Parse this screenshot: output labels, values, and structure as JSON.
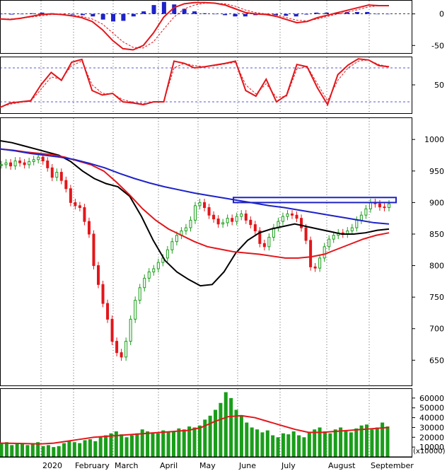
{
  "chart_data": [
    {
      "panel": "macd",
      "type": "line",
      "y_ticks": [
        "0",
        "-50"
      ],
      "ylim": [
        -62,
        22
      ],
      "series": [
        {
          "role": "macd-line",
          "color": "#e3161b",
          "values": [
            -8,
            -9,
            -7,
            -4,
            -1,
            0,
            -1,
            -3,
            -6,
            -12,
            -25,
            -42,
            -55,
            -57,
            -50,
            -30,
            -5,
            10,
            16,
            18,
            18,
            17,
            14,
            8,
            2,
            0,
            -1,
            -4,
            -9,
            -14,
            -12,
            -6,
            -2,
            2,
            6,
            10,
            14,
            13,
            13
          ]
        },
        {
          "role": "signal-line",
          "color": "#e3161b",
          "values": [
            -8,
            -8,
            -7,
            -5,
            -3,
            -1,
            -1,
            -2,
            -4,
            -8,
            -16,
            -30,
            -44,
            -53,
            -54,
            -44,
            -24,
            -5,
            8,
            14,
            17,
            17,
            16,
            12,
            6,
            2,
            0,
            -2,
            -6,
            -10,
            -11,
            -8,
            -4,
            0,
            3,
            7,
            11,
            13,
            13
          ]
        },
        {
          "role": "histogram",
          "color": "#1e22c8",
          "values": [
            0,
            -1,
            0,
            1,
            2,
            1,
            0,
            -1,
            -2,
            -4,
            -9,
            -12,
            -11,
            -4,
            4,
            14,
            19,
            15,
            8,
            4,
            1,
            0,
            -2,
            -4,
            -4,
            -2,
            -1,
            -2,
            -3,
            -4,
            -1,
            2,
            2,
            2,
            3,
            3,
            3,
            0,
            0
          ]
        }
      ]
    },
    {
      "panel": "stochastic",
      "type": "line",
      "y_ticks": [
        "50"
      ],
      "ylim": [
        0,
        100
      ],
      "reference_lines": [
        80,
        20
      ],
      "series": [
        {
          "role": "%K",
          "color": "#e3161b",
          "values": [
            10,
            18,
            20,
            22,
            50,
            72,
            58,
            90,
            95,
            40,
            32,
            35,
            20,
            18,
            15,
            20,
            20,
            92,
            88,
            80,
            82,
            85,
            88,
            92,
            40,
            30,
            60,
            20,
            32,
            86,
            82,
            45,
            15,
            68,
            85,
            96,
            94,
            84,
            82
          ]
        },
        {
          "role": "%D",
          "color": "#e3161b",
          "values": [
            11,
            16,
            19,
            21,
            42,
            64,
            60,
            84,
            92,
            50,
            35,
            34,
            24,
            19,
            17,
            19,
            21,
            80,
            88,
            84,
            82,
            84,
            87,
            90,
            50,
            34,
            52,
            28,
            30,
            78,
            83,
            52,
            22,
            58,
            80,
            92,
            94,
            86,
            82
          ]
        }
      ]
    },
    {
      "panel": "price",
      "type": "candlestick",
      "y_ticks": [
        "1000",
        "950",
        "900",
        "850",
        "800",
        "750",
        "700",
        "650"
      ],
      "ylim": [
        610,
        1035
      ],
      "series": [
        {
          "role": "close",
          "color": "#1a9e1a",
          "values": [
            960,
            963,
            958,
            966,
            963,
            960,
            965,
            968,
            972,
            966,
            955,
            940,
            948,
            935,
            922,
            900,
            895,
            892,
            870,
            850,
            800,
            770,
            740,
            715,
            680,
            662,
            655,
            680,
            715,
            745,
            765,
            780,
            790,
            795,
            805,
            812,
            825,
            838,
            848,
            855,
            860,
            872,
            895,
            900,
            892,
            880,
            874,
            866,
            868,
            875,
            870,
            878,
            882,
            872,
            865,
            855,
            835,
            830,
            845,
            860,
            870,
            878,
            882,
            880,
            875,
            860,
            840,
            798,
            796,
            812,
            830,
            842,
            848,
            852,
            850,
            855,
            860,
            872,
            880,
            890,
            900,
            898,
            893,
            892,
            898
          ]
        },
        {
          "role": "ma-black",
          "color": "#000000",
          "values": [
            998,
            995,
            990,
            985,
            980,
            975,
            965,
            950,
            938,
            930,
            925,
            910,
            878,
            840,
            808,
            790,
            778,
            768,
            770,
            790,
            820,
            840,
            852,
            858,
            862,
            866,
            862,
            858,
            854,
            850,
            850,
            852,
            856,
            858
          ]
        },
        {
          "role": "ma-red",
          "color": "#e3161b",
          "values": [
            985,
            983,
            980,
            978,
            976,
            972,
            966,
            960,
            950,
            932,
            912,
            890,
            872,
            858,
            848,
            838,
            830,
            826,
            822,
            820,
            818,
            815,
            812,
            812,
            814,
            818,
            826,
            834,
            842,
            848,
            852
          ]
        },
        {
          "role": "ma-blue",
          "color": "#1e22c8",
          "values": [
            985,
            982,
            978,
            975,
            972,
            968,
            962,
            955,
            946,
            938,
            931,
            925,
            920,
            915,
            911,
            907,
            903,
            899,
            895,
            892,
            888,
            884,
            880,
            876,
            872,
            868,
            866
          ]
        }
      ],
      "resistance_box": [
        900,
        908
      ]
    },
    {
      "panel": "volume",
      "type": "bar",
      "unit_label": "(x10000)",
      "y_ticks": [
        "60000",
        "50000",
        "40000",
        "30000",
        "20000",
        "10000"
      ],
      "ylim": [
        0,
        70000
      ],
      "series": [
        {
          "role": "volume",
          "color": "#1a9e1a",
          "values": [
            14000,
            15000,
            12000,
            13000,
            14000,
            12000,
            13000,
            15000,
            11000,
            12000,
            10000,
            11000,
            14000,
            16000,
            15000,
            14000,
            17000,
            18000,
            16000,
            20000,
            22000,
            24000,
            26000,
            23000,
            20000,
            22000,
            24000,
            28000,
            26000,
            25000,
            24000,
            27000,
            25000,
            26000,
            29000,
            28000,
            31000,
            30000,
            32000,
            38000,
            42000,
            48000,
            55000,
            66000,
            60000,
            48000,
            42000,
            35000,
            30000,
            28000,
            25000,
            27000,
            22000,
            20000,
            24000,
            23000,
            26000,
            22000,
            20000,
            25000,
            28000,
            30000,
            26000,
            24000,
            28000,
            30000,
            27000,
            25000,
            29000,
            32000,
            33000,
            28000,
            30000,
            35000,
            31000
          ]
        },
        {
          "role": "volume-ma",
          "color": "#e3161b",
          "values": [
            14000,
            13800,
            13500,
            13200,
            14000,
            16000,
            18000,
            20000,
            21000,
            22000,
            23000,
            24000,
            25000,
            26000,
            27000,
            30000,
            36000,
            41000,
            42000,
            40000,
            36000,
            32000,
            28000,
            25000,
            25000,
            26000,
            27000,
            28000,
            29000,
            30000
          ]
        }
      ]
    }
  ],
  "x_axis": {
    "labels": [
      "2020",
      "February",
      "March",
      "April",
      "May",
      "June",
      "July",
      "August",
      "September"
    ]
  }
}
